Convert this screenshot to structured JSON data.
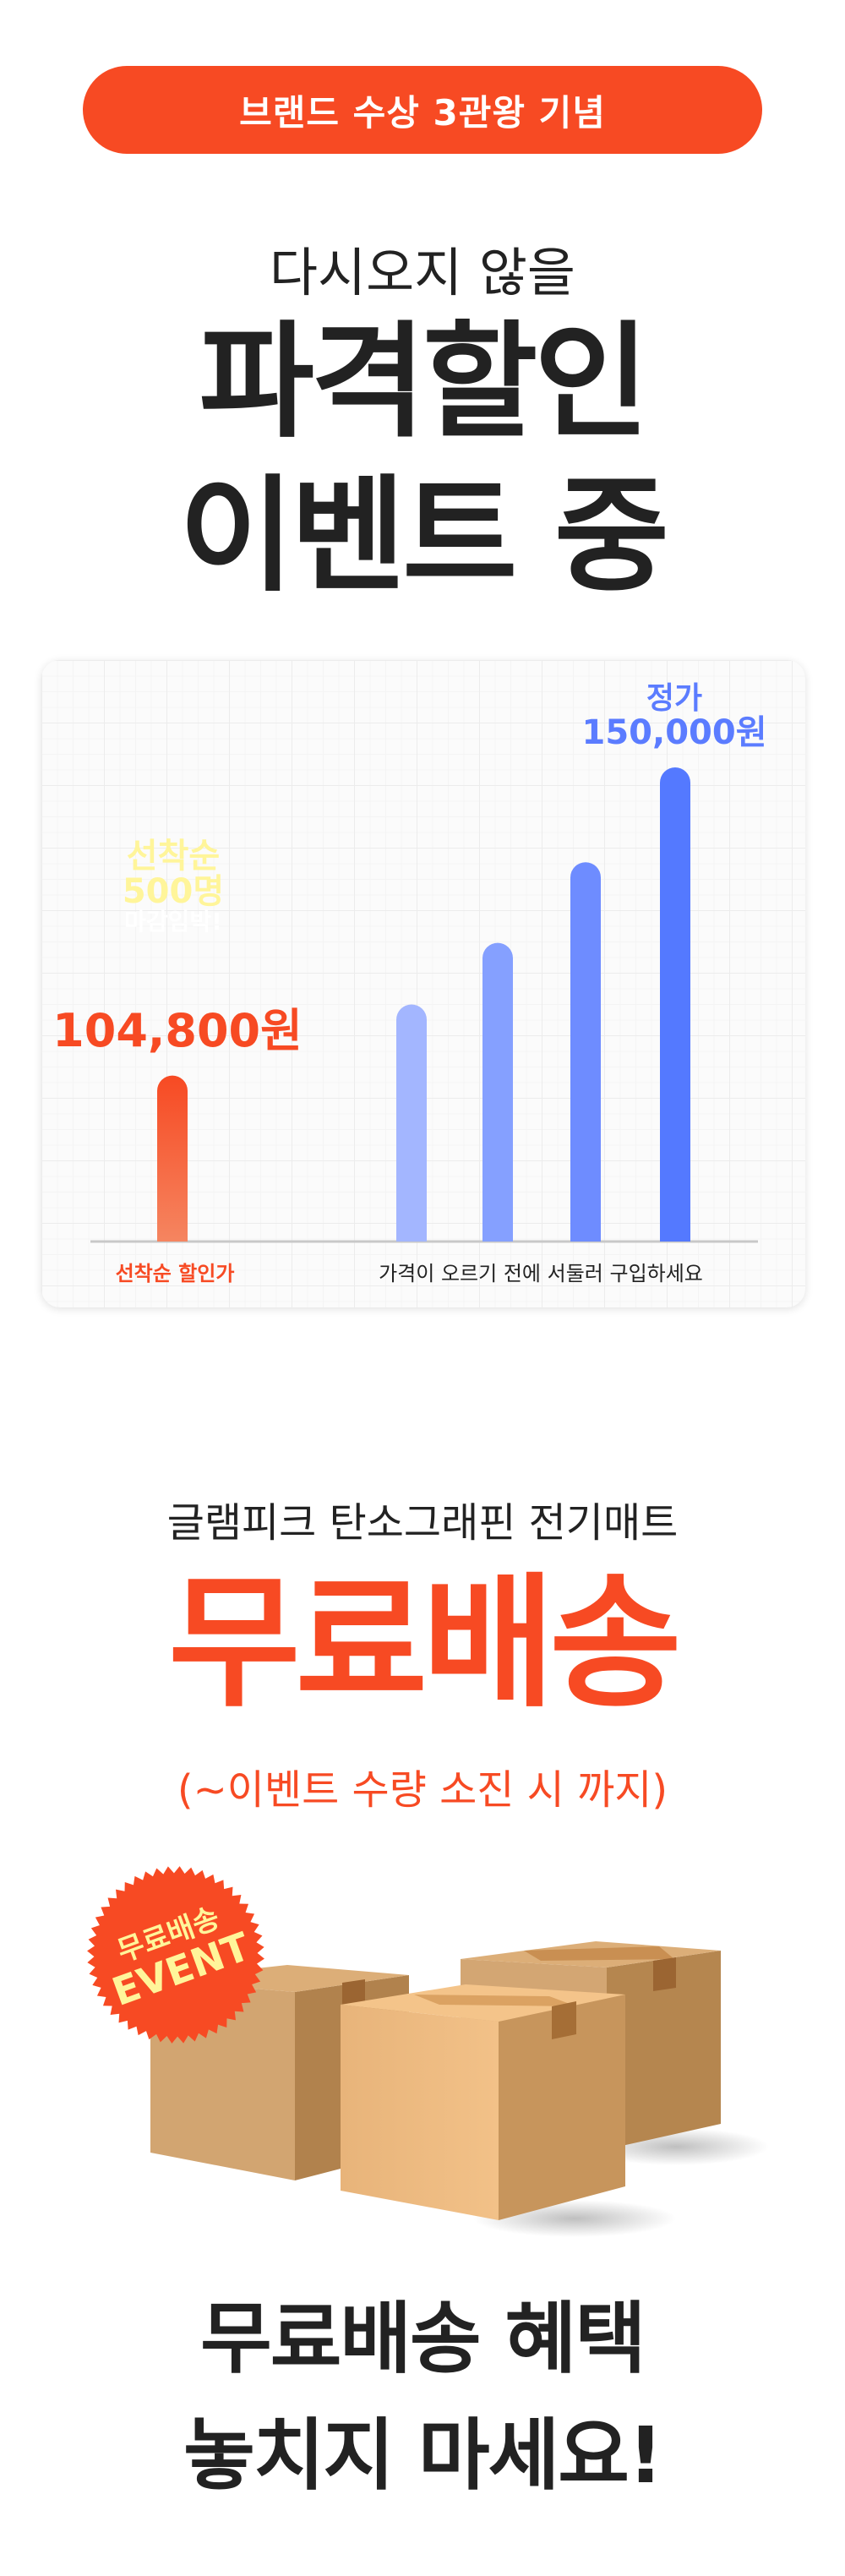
{
  "banner": {
    "pill": "브랜드 수상 3관왕 기념",
    "subtitle": "다시오지 않을",
    "headline1": "파격할인",
    "headline2": "이벤트 중"
  },
  "chart_data": {
    "type": "bar",
    "categories": [
      "선착순 할인가",
      "",
      "",
      "",
      ""
    ],
    "bars": [
      {
        "label": "104,800원",
        "level": 0.35,
        "color": "#f74a23"
      },
      {
        "level": 0.5,
        "color": "#a3b6ff"
      },
      {
        "level": 0.63,
        "color": "#85a0ff"
      },
      {
        "level": 0.8,
        "color": "#6e8cff"
      },
      {
        "label": "150,000원",
        "caption": "정가",
        "level": 1.0,
        "color": "#5479ff"
      }
    ],
    "sale_price": "104,800원",
    "regular_label": "정가",
    "regular_price": "150,000원",
    "xlabel_left": "선착순 할인가",
    "xlabel_right": "가격이 오르기 전에 서둘러 구입하세요",
    "grid": true
  },
  "badge1": {
    "line1": "선착순",
    "line2": "500명",
    "line3": "마감임박!"
  },
  "shipping": {
    "product": "글램피크 탄소그래핀 전기매트",
    "title": "무료배송",
    "note": "(~이벤트 수량 소진 시 까지)"
  },
  "badge2": {
    "line1": "무료배송",
    "line2": "EVENT"
  },
  "closing": {
    "line1": "무료배송 혜택",
    "line2": "놓치지 마세요!"
  },
  "colors": {
    "accent": "#f74a23",
    "blue": "#5479ff",
    "badge_text": "#fff59a"
  }
}
